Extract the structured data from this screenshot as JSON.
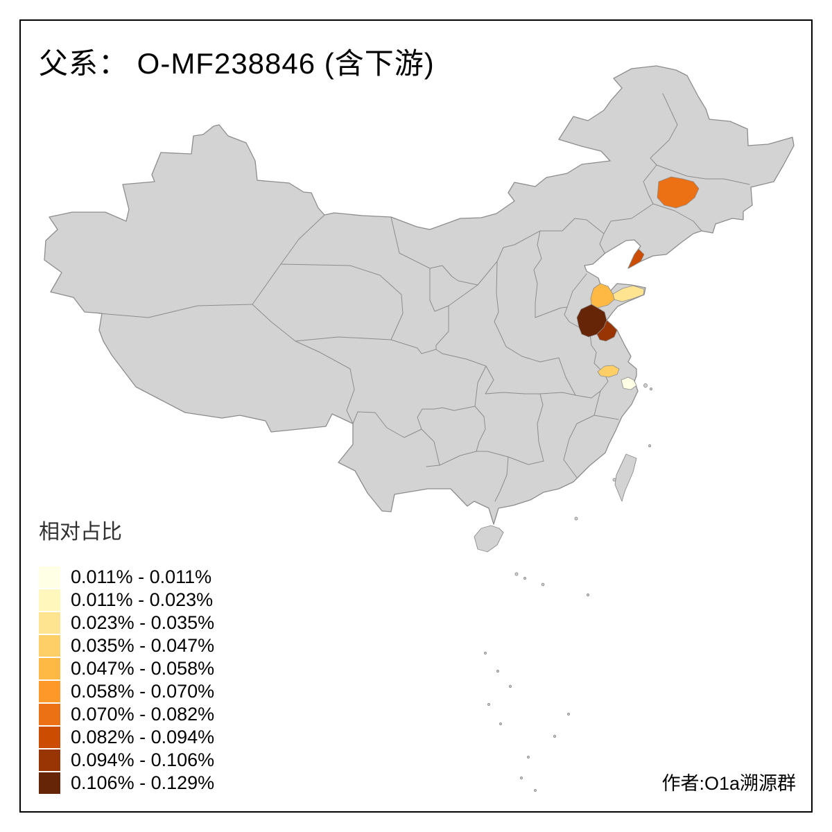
{
  "title": "父系： O-MF238846 (含下游)",
  "attribution": "作者:O1a溯源群",
  "legend": {
    "title": "相对占比",
    "classes": [
      {
        "label": "0.011% - 0.011%",
        "color": "#FFFFE5"
      },
      {
        "label": "0.011% - 0.023%",
        "color": "#FFF7BC"
      },
      {
        "label": "0.023% - 0.035%",
        "color": "#FEE391"
      },
      {
        "label": "0.035% - 0.047%",
        "color": "#FECF66"
      },
      {
        "label": "0.047% - 0.058%",
        "color": "#FEB945"
      },
      {
        "label": "0.058% - 0.070%",
        "color": "#FE9929"
      },
      {
        "label": "0.070% - 0.082%",
        "color": "#EC7014"
      },
      {
        "label": "0.082% - 0.094%",
        "color": "#CC4C02"
      },
      {
        "label": "0.094% - 0.106%",
        "color": "#993404"
      },
      {
        "label": "0.106% - 0.129%",
        "color": "#662506"
      }
    ]
  },
  "map": {
    "land_color": "#D3D3D3",
    "border_color": "#8C8C8C",
    "sea_color": "#FFFFFF",
    "regions": [
      {
        "name": "northeast-changchun-area",
        "color": "#EC7014"
      },
      {
        "name": "liaodong-dalian-area",
        "color": "#CC4C02"
      },
      {
        "name": "shandong-yantai-weihai-area",
        "color": "#FEE391"
      },
      {
        "name": "shandong-weifang-area",
        "color": "#FEB945"
      },
      {
        "name": "shandong-linyi-area",
        "color": "#662506"
      },
      {
        "name": "jiangsu-lianyungang-area",
        "color": "#993404"
      },
      {
        "name": "jiangsu-taizhou-area",
        "color": "#FECF66"
      },
      {
        "name": "jiangnan-suzhou-area",
        "color": "#FFFFE5"
      }
    ]
  }
}
